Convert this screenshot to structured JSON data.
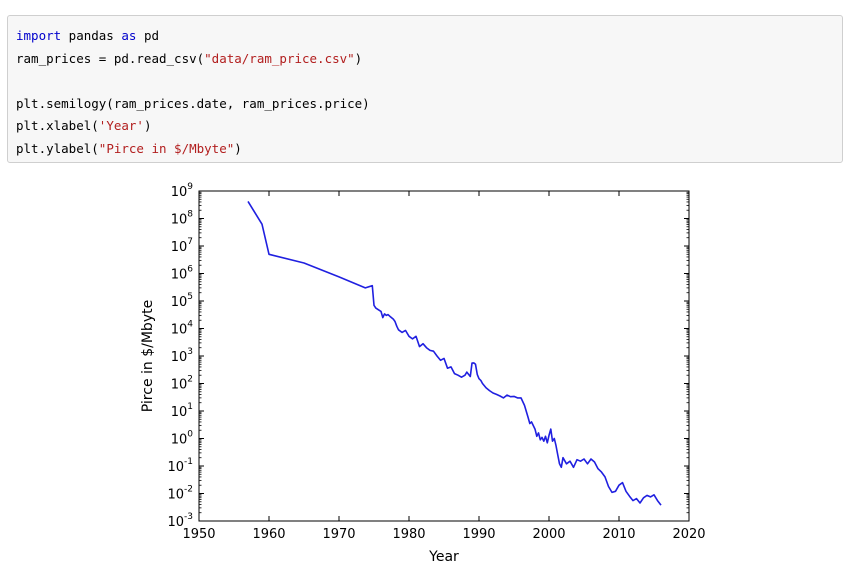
{
  "code_cell": {
    "lines": [
      [
        {
          "t": "import",
          "k": "kw"
        },
        {
          "t": " pandas ",
          "k": ""
        },
        {
          "t": "as",
          "k": "kw"
        },
        {
          "t": " pd",
          "k": ""
        }
      ],
      [
        {
          "t": "ram_prices = pd.read_csv(",
          "k": ""
        },
        {
          "t": "\"data/ram_price.csv\"",
          "k": "str"
        },
        {
          "t": ")",
          "k": ""
        }
      ],
      [],
      [
        {
          "t": "plt.semilogy(ram_prices.date, ram_prices.price)",
          "k": ""
        }
      ],
      [
        {
          "t": "plt.xlabel(",
          "k": ""
        },
        {
          "t": "'Year'",
          "k": "str"
        },
        {
          "t": ")",
          "k": ""
        }
      ],
      [
        {
          "t": "plt.ylabel(",
          "k": ""
        },
        {
          "t": "\"Pirce in $/Mbyte\"",
          "k": "str"
        },
        {
          "t": ")",
          "k": ""
        }
      ]
    ]
  },
  "colors": {
    "line": "#2020e0",
    "keyword": "#0000cc",
    "string": "#b21e1e",
    "cell_bg": "#f7f7f7"
  },
  "chart_data": {
    "type": "line",
    "title": "",
    "xlabel": "Year",
    "ylabel": "Pirce in $/Mbyte",
    "xlim": [
      1950,
      2020
    ],
    "ylim_exponents": [
      -3,
      9
    ],
    "yscale": "log",
    "xticks": [
      "1950",
      "1960",
      "1970",
      "1980",
      "1990",
      "2000",
      "2010",
      "2020"
    ],
    "yticks": [
      {
        "base": "10",
        "exp": "9"
      },
      {
        "base": "10",
        "exp": "8"
      },
      {
        "base": "10",
        "exp": "7"
      },
      {
        "base": "10",
        "exp": "6"
      },
      {
        "base": "10",
        "exp": "5"
      },
      {
        "base": "10",
        "exp": "4"
      },
      {
        "base": "10",
        "exp": "3"
      },
      {
        "base": "10",
        "exp": "2"
      },
      {
        "base": "10",
        "exp": "1"
      },
      {
        "base": "10",
        "exp": "0"
      },
      {
        "base": "10",
        "exp": "-1"
      },
      {
        "base": "10",
        "exp": "-2"
      },
      {
        "base": "10",
        "exp": "-3"
      }
    ],
    "grid": false,
    "series": [
      {
        "x": [
          1957,
          1959,
          1960,
          1965,
          1970,
          1973.75,
          1974.75,
          1975,
          1975.25,
          1976,
          1976.25,
          1976.5,
          1976.75,
          1977,
          1977.25,
          1977.75,
          1978,
          1978.25,
          1978.5,
          1979,
          1979.5,
          1980,
          1980.5,
          1981,
          1981.5,
          1982,
          1982.5,
          1983,
          1983.5,
          1984,
          1984.5,
          1985,
          1985.5,
          1986,
          1986.5,
          1987,
          1987.5,
          1988,
          1988.25,
          1988.75,
          1989,
          1989.25,
          1989.5,
          1989.75,
          1990,
          1990.25,
          1990.5,
          1991,
          1991.5,
          1992,
          1992.5,
          1993,
          1993.5,
          1994,
          1994.5,
          1995,
          1995.5,
          1996,
          1996.5,
          1997,
          1997.25,
          1997.5,
          1998,
          1998.25,
          1998.5,
          1998.75,
          1999,
          1999.25,
          1999.5,
          1999.75,
          2000,
          2000.25,
          2000.5,
          2000.75,
          2001,
          2001.25,
          2001.5,
          2001.75,
          2002,
          2002.5,
          2003,
          2003.5,
          2004,
          2004.5,
          2005,
          2005.5,
          2006,
          2006.5,
          2007,
          2007.5,
          2008,
          2008.5,
          2009,
          2009.5,
          2010,
          2010.5,
          2011,
          2011.5,
          2012,
          2012.5,
          2013,
          2013.5,
          2014,
          2014.5,
          2015,
          2015.5,
          2016
        ],
        "y": [
          420000000,
          62000000,
          5000000,
          2400000,
          750000,
          300000,
          360000,
          70000,
          55000,
          42000,
          25000,
          34000,
          30000,
          32000,
          28000,
          22000,
          18000,
          12000,
          9000,
          7200,
          8500,
          5200,
          4200,
          5200,
          2200,
          2800,
          2000,
          1600,
          1500,
          1000,
          700,
          820,
          360,
          400,
          230,
          200,
          170,
          200,
          260,
          180,
          550,
          560,
          500,
          210,
          150,
          130,
          100,
          70,
          55,
          45,
          40,
          35,
          30,
          38,
          33,
          34,
          30,
          30,
          16,
          6,
          3.5,
          4,
          2.2,
          1.2,
          1.6,
          0.9,
          1.1,
          0.8,
          1.2,
          0.7,
          1.3,
          2.2,
          0.8,
          1.0,
          0.55,
          0.25,
          0.12,
          0.09,
          0.2,
          0.12,
          0.15,
          0.09,
          0.17,
          0.15,
          0.18,
          0.12,
          0.18,
          0.14,
          0.08,
          0.06,
          0.04,
          0.018,
          0.011,
          0.012,
          0.02,
          0.025,
          0.012,
          0.008,
          0.0055,
          0.0065,
          0.0045,
          0.007,
          0.0085,
          0.0075,
          0.009,
          0.0055,
          0.0038
        ]
      }
    ]
  }
}
